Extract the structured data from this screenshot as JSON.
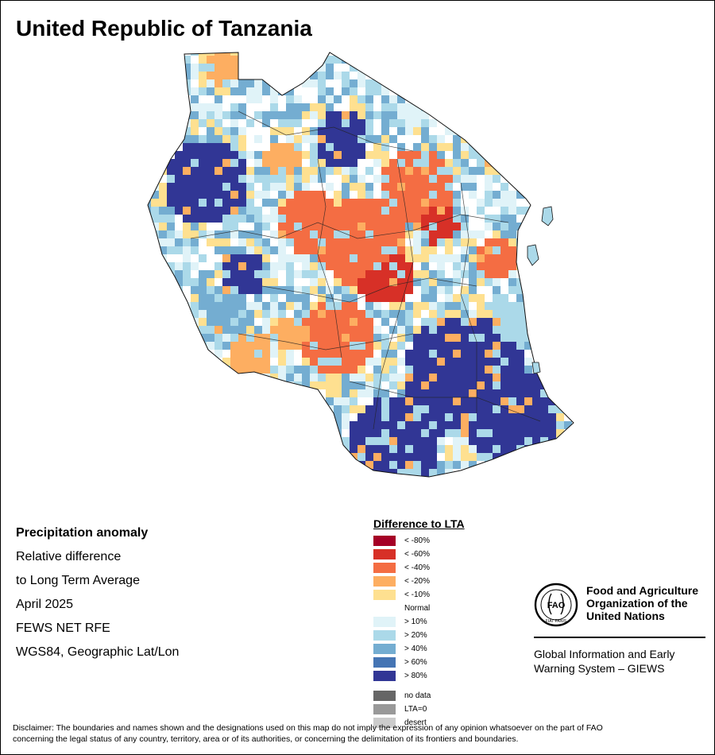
{
  "title": "United Republic of Tanzania",
  "info": {
    "heading": "Precipitation anomaly",
    "line1": "Relative difference",
    "line2": "to Long Term Average",
    "period": "April 2025",
    "source": "FEWS NET RFE",
    "projection": "WGS84, Geographic Lat/Lon"
  },
  "legend": {
    "title": "Difference to LTA",
    "classes": [
      {
        "label": "< -80%",
        "color": "#a50026"
      },
      {
        "label": "< -60%",
        "color": "#d73027"
      },
      {
        "label": "< -40%",
        "color": "#f46d43"
      },
      {
        "label": "< -20%",
        "color": "#fdae61"
      },
      {
        "label": "< -10%",
        "color": "#fee090"
      },
      {
        "label": "Normal",
        "color": "#ffffff"
      },
      {
        "label": "> 10%",
        "color": "#e0f3f8"
      },
      {
        "label": "> 20%",
        "color": "#abd9e9"
      },
      {
        "label": "> 40%",
        "color": "#74add1"
      },
      {
        "label": "> 60%",
        "color": "#4575b4"
      },
      {
        "label": "> 80%",
        "color": "#313695"
      }
    ],
    "extra": [
      {
        "label": "no data",
        "color": "#666666"
      },
      {
        "label": "LTA=0",
        "color": "#999999"
      },
      {
        "label": "desert",
        "color": "#cccccc"
      }
    ]
  },
  "organization": {
    "name_line1": "Food and Agriculture",
    "name_line2": "Organization of the",
    "name_line3": "United Nations",
    "system_line1": "Global Information and Early",
    "system_line2": "Warning System – GIEWS",
    "logo_text": "FAO",
    "logo_motto": "FIAT PANIS"
  },
  "disclaimer_line1": "Disclaimer: The boundaries and names shown and the designations used on this map do not imply the expression of any opinion whatsoever on the part of FAO",
  "disclaimer_line2": "concerning the legal status of any country, territory, area or of its authorities, or concerning the delimitation of its frontiers and boundaries.",
  "anomaly_zones": [
    {
      "zone": "northwest-lake-region",
      "class": "> 80%"
    },
    {
      "zone": "kagera-north",
      "class": "< -20%"
    },
    {
      "zone": "central-plateau",
      "class": "< -40%"
    },
    {
      "zone": "dodoma-core",
      "class": "< -60%"
    },
    {
      "zone": "northeast-arusha-manyara",
      "class": "< -40%"
    },
    {
      "zone": "southwest-highlands",
      "class": "< -20%"
    },
    {
      "zone": "west-tabora-katavi",
      "class": "> 40%"
    },
    {
      "zone": "southeast-lindi-mtwara",
      "class": "> 80%"
    },
    {
      "zone": "ruvuma-south",
      "class": "> 80%"
    },
    {
      "zone": "coast-strip",
      "class": "> 20%"
    },
    {
      "zone": "zanzibar-pemba",
      "class": "> 20%"
    }
  ]
}
